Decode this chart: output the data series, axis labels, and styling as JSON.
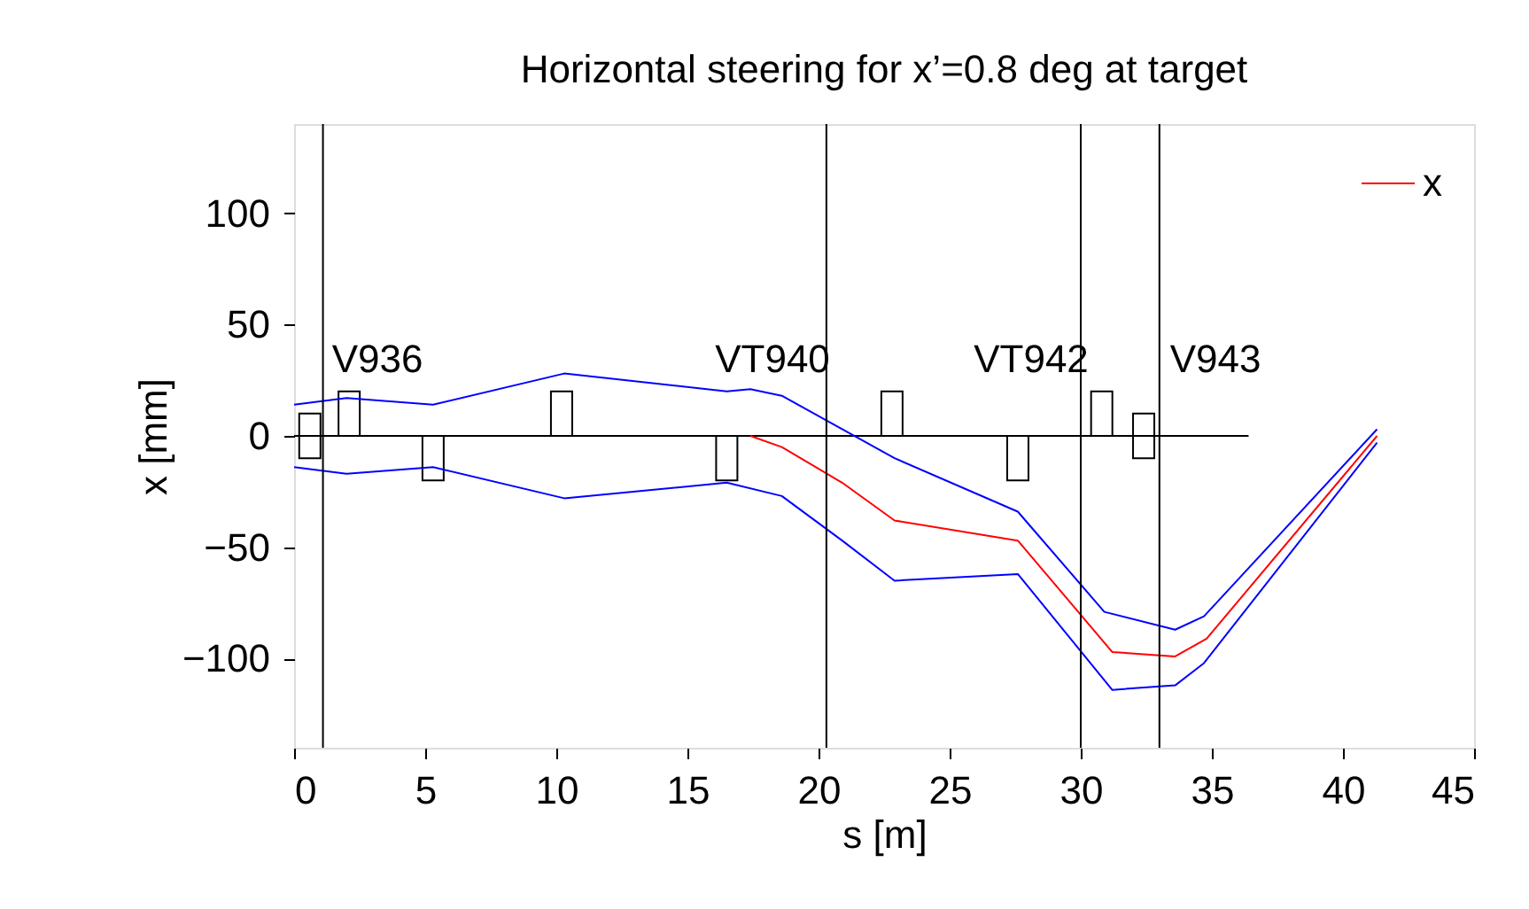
{
  "chart_data": {
    "type": "line",
    "title": "Horizontal steering for x’=0.8 deg at target",
    "xlabel": "s [m]",
    "ylabel": "x [mm]",
    "xlim": [
      0,
      45
    ],
    "xticks": [
      0,
      5,
      10,
      15,
      20,
      25,
      30,
      35,
      40,
      45
    ],
    "ylim": [
      -140,
      140
    ],
    "yticks": [
      -100,
      -50,
      0,
      50,
      100
    ],
    "grid": false,
    "legend": "top right",
    "line_style": "solid",
    "marker": "none",
    "series": [
      {
        "type": "bar",
        "color": "#000000",
        "x": [
          0.6,
          2.1,
          5.3,
          10.2,
          16.5,
          22.8,
          27.6,
          30.8,
          32.4
        ],
        "base": [
          -10,
          0,
          -20,
          0,
          -20,
          0,
          -20,
          0,
          -10
        ],
        "values": [
          20,
          20,
          20,
          20,
          20,
          20,
          20,
          20,
          20
        ]
      },
      {
        "color": "#000000",
        "x": [
          0,
          36.4
        ],
        "values": [
          0,
          0
        ]
      },
      {
        "color": "#0000ff",
        "x": [
          0,
          2,
          5.3,
          10.3,
          16.5,
          17.4,
          18.6,
          20.9,
          22.9,
          27.6,
          30.9,
          33.6,
          34.7,
          41.3
        ],
        "values": [
          14,
          17,
          14,
          28,
          20,
          21,
          18,
          3,
          -10,
          -34,
          -79,
          -87,
          -81,
          3
        ]
      },
      {
        "name": "x",
        "color": "#ff0000",
        "x": [
          17.4,
          18.6,
          20.9,
          22.9,
          27.6,
          31.2,
          33.6,
          34.8,
          41.3
        ],
        "values": [
          0,
          -5,
          -21,
          -38,
          -47,
          -97,
          -99,
          -91,
          0
        ]
      },
      {
        "color": "#0000ff",
        "x": [
          0,
          2,
          5.3,
          10.3,
          16.5,
          18.6,
          20.9,
          22.9,
          27.6,
          31.2,
          33.6,
          34.7,
          41.3
        ],
        "values": [
          -14,
          -17,
          -14,
          -28,
          -21,
          -27,
          -47,
          -65,
          -62,
          -114,
          -112,
          -102,
          -3
        ]
      }
    ],
    "ref_lines": [
      {
        "axis": "x",
        "value": 1.1
      },
      {
        "axis": "x",
        "value": 20.3
      },
      {
        "axis": "x",
        "value": 30.0
      },
      {
        "axis": "x",
        "value": 33.0
      }
    ],
    "annotations": [
      "V936",
      "VT940",
      "VT942",
      "V943"
    ]
  }
}
